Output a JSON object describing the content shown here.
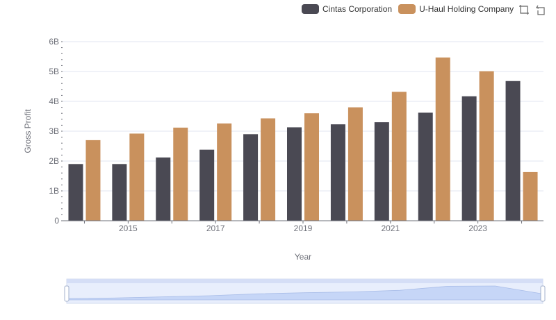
{
  "chart_data": {
    "type": "bar",
    "x": [
      2014,
      2015,
      2016,
      2017,
      2018,
      2019,
      2020,
      2021,
      2022,
      2023,
      2024
    ],
    "x_tick_labels": [
      "2015",
      "2017",
      "2019",
      "2021",
      "2023"
    ],
    "series": [
      {
        "name": "Cintas Corporation",
        "color": "#4a4953",
        "values": [
          1.9,
          1.9,
          2.12,
          2.38,
          2.9,
          3.13,
          3.23,
          3.3,
          3.62,
          4.17,
          4.68
        ]
      },
      {
        "name": "U-Haul Holding Company",
        "color": "#c9915d",
        "values": [
          2.7,
          2.92,
          3.12,
          3.26,
          3.43,
          3.6,
          3.8,
          4.32,
          5.47,
          5.01,
          1.63
        ]
      }
    ],
    "xlabel": "Year",
    "ylabel": "Gross Profit",
    "ylim": [
      0,
      6
    ],
    "y_tick_labels": [
      "0",
      "1B",
      "2B",
      "3B",
      "4B",
      "5B",
      "6B"
    ],
    "grid": true,
    "legend_position": "top-right"
  },
  "toolbox": {
    "zoom_icon": "zoom-icon",
    "restore_icon": "restore-icon"
  },
  "datazoom": {
    "start_percent": 0,
    "end_percent": 100
  }
}
